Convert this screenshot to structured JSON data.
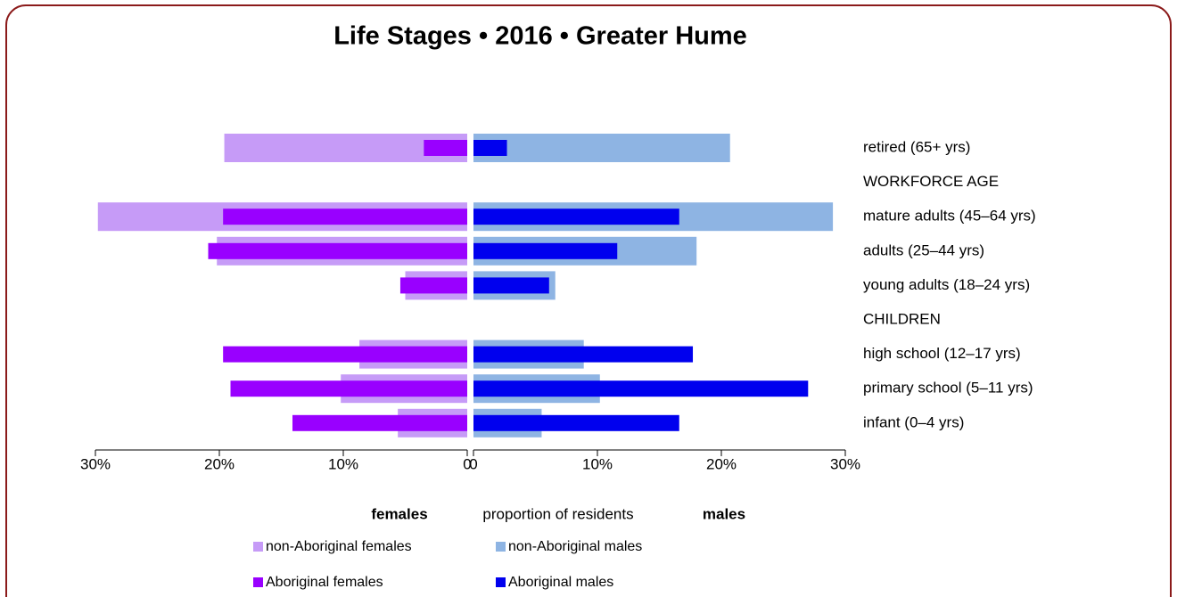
{
  "chart_data": {
    "type": "pyramid",
    "title": "Life Stages  •  2016  •  Greater Hume",
    "left_label": "females",
    "axis_label": "proportion of residents",
    "right_label": "males",
    "categories": [
      "retired (65+ yrs)",
      "WORKFORCE AGE",
      "mature adults (45–64 yrs)",
      "adults (25–44 yrs)",
      "young adults (18–24 yrs)",
      "CHILDREN",
      "high school (12–17 yrs)",
      "primary school (5–11 yrs)",
      "infant (0–4 yrs)"
    ],
    "series": [
      {
        "name": "non-Aboriginal females",
        "color": "#c69bf7",
        "side": "left",
        "width": "wide",
        "values": [
          19.6,
          null,
          29.8,
          20.2,
          5.0,
          null,
          8.7,
          10.2,
          5.6
        ]
      },
      {
        "name": "non-Aboriginal males",
        "color": "#8eb4e3",
        "side": "right",
        "width": "wide",
        "values": [
          20.7,
          null,
          29.0,
          18.0,
          6.6,
          null,
          8.9,
          10.2,
          5.5
        ]
      },
      {
        "name": "Aboriginal females",
        "color": "#9900ff",
        "side": "left",
        "width": "narrow",
        "values": [
          3.5,
          null,
          19.7,
          20.9,
          5.4,
          null,
          19.7,
          19.1,
          14.1
        ]
      },
      {
        "name": "Aboriginal males",
        "color": "#0000ee",
        "side": "right",
        "width": "narrow",
        "values": [
          2.7,
          null,
          16.6,
          11.6,
          6.1,
          null,
          17.7,
          27.0,
          16.6
        ]
      }
    ],
    "xlim": [
      0,
      30
    ],
    "xticks": [
      {
        "value": 0,
        "label": "0"
      },
      {
        "value": 10,
        "label": "10%"
      },
      {
        "value": 20,
        "label": "20%"
      },
      {
        "value": 30,
        "label": "30%"
      }
    ],
    "left_color": "#ee0000",
    "right_color": "#0000ee"
  }
}
